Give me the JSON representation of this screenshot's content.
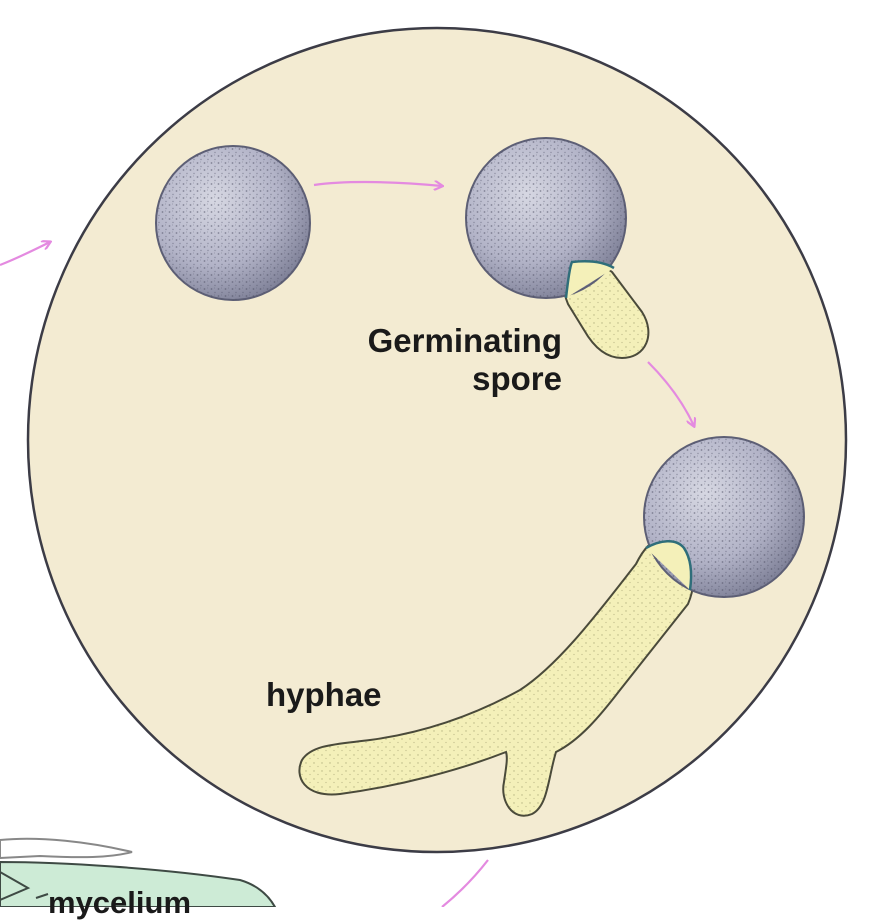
{
  "labels": {
    "germinating_line1": "Germinating",
    "germinating_line2": "spore",
    "hyphae": "hyphae",
    "mycelium": "mycelium"
  },
  "colors": {
    "circle_fill": "#f3ebd2",
    "circle_stroke": "#3c3c46",
    "spore_fill": "#b8b9cc",
    "spore_stipple": "#5a5c70",
    "hypha_fill": "#f4f0b9",
    "hypha_stroke": "#4a4a3a",
    "arrow": "#e48ae0",
    "mycelium_fill": "#cdebd6"
  }
}
